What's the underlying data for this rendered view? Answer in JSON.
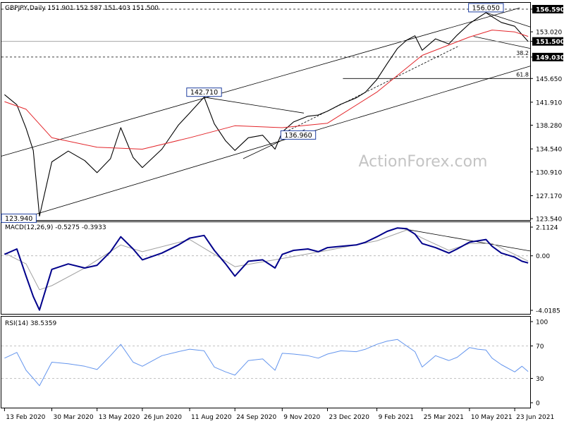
{
  "header": {
    "symbol_line": "GBPJPY,Daily  151.901 152.587 151.403 151.500"
  },
  "watermark": "ActionForex.com",
  "colors": {
    "price": "#000000",
    "ma": "#e3262b",
    "macd": "#00008b",
    "signal": "#a0a0a0",
    "rsi": "#6495ed",
    "channel": "#000000",
    "guide": "#000000",
    "label_fill": "#ffffff",
    "label_border": "#1f3fa0",
    "highlight": "#000000"
  },
  "x_axis": {
    "labels": [
      "13 Feb 2020",
      "30 Mar 2020",
      "13 May 2020",
      "26 Jun 2020",
      "11 Aug 2020",
      "24 Sep 2020",
      "9 Nov 2020",
      "23 Dec 2020",
      "9 Feb 2021",
      "25 Mar 2021",
      "10 May 2021",
      "23 Jun 2021"
    ]
  },
  "chart_data": [
    {
      "type": "line",
      "title": "GBPJPY,Daily  151.901 152.587 151.403 151.500",
      "y_axis_labels": [
        "156.590",
        "153.020",
        "151.500",
        "149.030",
        "145.650",
        "141.910",
        "138.280",
        "134.540",
        "130.910",
        "127.170",
        "123.540"
      ],
      "ylim": [
        123.54,
        156.59
      ],
      "series": [
        {
          "name": "GBPJPY",
          "x": [
            "13 Feb 2020",
            "25 Feb 2020",
            "5 Mar 2020",
            "12 Mar 2020",
            "18 Mar 2020",
            "30 Mar 2020",
            "15 Apr 2020",
            "1 May 2020",
            "13 May 2020",
            "26 May 2020",
            "5 Jun 2020",
            "17 Jun 2020",
            "26 Jun 2020",
            "15 Jul 2020",
            "31 Jul 2020",
            "11 Aug 2020",
            "25 Aug 2020",
            "4 Sep 2020",
            "15 Sep 2020",
            "24 Sep 2020",
            "7 Oct 2020",
            "21 Oct 2020",
            "2 Nov 2020",
            "9 Nov 2020",
            "20 Nov 2020",
            "4 Dec 2020",
            "14 Dec 2020",
            "23 Dec 2020",
            "5 Jan 2021",
            "20 Jan 2021",
            "29 Jan 2021",
            "9 Feb 2021",
            "19 Feb 2021",
            "1 Mar 2021",
            "10 Mar 2021",
            "18 Mar 2021",
            "25 Mar 2021",
            "7 Apr 2021",
            "20 Apr 2021",
            "28 Apr 2021",
            "10 May 2021",
            "18 May 2021",
            "26 May 2021",
            "1 Jun 2021",
            "10 Jun 2021",
            "23 Jun 2021",
            "30 Jun 2021",
            "6 Jul 2021"
          ],
          "values": [
            143.1,
            141.5,
            137.8,
            134.3,
            123.94,
            132.5,
            134.2,
            132.7,
            130.8,
            133.0,
            137.9,
            133.2,
            131.6,
            134.5,
            138.3,
            140.2,
            142.71,
            138.5,
            135.8,
            134.3,
            136.3,
            136.7,
            134.5,
            137.2,
            138.8,
            139.7,
            139.9,
            140.5,
            141.6,
            142.6,
            143.5,
            145.5,
            148.0,
            150.4,
            151.7,
            152.4,
            150.1,
            151.9,
            151.1,
            152.5,
            154.3,
            155.2,
            156.05,
            155.4,
            154.5,
            153.9,
            152.6,
            151.5
          ]
        },
        {
          "name": "MA",
          "x": [
            "13 Feb 2020",
            "5 Mar 2020",
            "30 Mar 2020",
            "13 May 2020",
            "26 Jun 2020",
            "11 Aug 2020",
            "24 Sep 2020",
            "9 Nov 2020",
            "23 Dec 2020",
            "9 Feb 2021",
            "25 Mar 2021",
            "10 May 2021",
            "1 Jun 2021",
            "23 Jun 2021",
            "6 Jul 2021"
          ],
          "values": [
            142.0,
            140.8,
            136.3,
            134.8,
            134.5,
            136.3,
            138.2,
            137.9,
            138.6,
            143.5,
            149.3,
            152.2,
            153.3,
            153.0,
            152.3
          ]
        }
      ],
      "levels": [
        {
          "label": "156.590",
          "value": 156.59,
          "style": "dashed"
        },
        {
          "label": "151.500",
          "value": 151.5,
          "style": "solid"
        },
        {
          "label": "149.030",
          "value": 149.03,
          "style": "dashed"
        },
        {
          "label": "38.2",
          "value": 149.03,
          "style": "solid"
        },
        {
          "label": "61.8",
          "value": 145.65,
          "style": "solid"
        }
      ],
      "annotations": [
        {
          "text": "156.050",
          "at": "26 May 2021",
          "value": 156.05
        },
        {
          "text": "142.710",
          "at": "25 Aug 2020",
          "value": 142.71
        },
        {
          "text": "136.960",
          "at": "9 Nov 2020",
          "value": 136.96
        },
        {
          "text": "123.940",
          "at": "18 Mar 2020",
          "value": 123.94
        }
      ]
    },
    {
      "type": "line",
      "title": "MACD(12,26,9) -0.5275 -0.3933",
      "y_axis_labels": [
        "2.1124",
        "0.00",
        "-4.0185"
      ],
      "ylim": [
        -4.0185,
        2.1124
      ],
      "series": [
        {
          "name": "MACD",
          "x": [
            "13 Feb 2020",
            "25 Feb 2020",
            "5 Mar 2020",
            "12 Mar 2020",
            "18 Mar 2020",
            "30 Mar 2020",
            "15 Apr 2020",
            "1 May 2020",
            "13 May 2020",
            "26 May 2020",
            "5 Jun 2020",
            "17 Jun 2020",
            "26 Jun 2020",
            "15 Jul 2020",
            "31 Jul 2020",
            "11 Aug 2020",
            "25 Aug 2020",
            "4 Sep 2020",
            "15 Sep 2020",
            "24 Sep 2020",
            "7 Oct 2020",
            "21 Oct 2020",
            "2 Nov 2020",
            "9 Nov 2020",
            "20 Nov 2020",
            "4 Dec 2020",
            "14 Dec 2020",
            "23 Dec 2020",
            "5 Jan 2021",
            "20 Jan 2021",
            "29 Jan 2021",
            "9 Feb 2021",
            "19 Feb 2021",
            "1 Mar 2021",
            "10 Mar 2021",
            "18 Mar 2021",
            "25 Mar 2021",
            "7 Apr 2021",
            "20 Apr 2021",
            "28 Apr 2021",
            "10 May 2021",
            "18 May 2021",
            "26 May 2021",
            "1 Jun 2021",
            "10 Jun 2021",
            "23 Jun 2021",
            "30 Jun 2021",
            "6 Jul 2021"
          ],
          "values": [
            0.1,
            0.5,
            -1.5,
            -3.0,
            -4.0,
            -1.0,
            -0.6,
            -0.9,
            -0.7,
            0.3,
            1.4,
            0.5,
            -0.3,
            0.2,
            0.8,
            1.3,
            1.5,
            0.4,
            -0.6,
            -1.5,
            -0.4,
            -0.3,
            -0.9,
            0.1,
            0.4,
            0.5,
            0.3,
            0.6,
            0.7,
            0.8,
            1.0,
            1.4,
            1.8,
            2.05,
            2.0,
            1.6,
            0.9,
            0.6,
            0.2,
            0.5,
            1.0,
            1.1,
            1.2,
            0.7,
            0.2,
            -0.1,
            -0.4,
            -0.5275
          ]
        },
        {
          "name": "Signal",
          "x": [
            "13 Feb 2020",
            "5 Mar 2020",
            "18 Mar 2020",
            "30 Mar 2020",
            "1 May 2020",
            "5 Jun 2020",
            "26 Jun 2020",
            "11 Aug 2020",
            "24 Sep 2020",
            "9 Nov 2020",
            "23 Dec 2020",
            "9 Feb 2021",
            "10 Mar 2021",
            "25 Mar 2021",
            "20 Apr 2021",
            "10 May 2021",
            "1 Jun 2021",
            "23 Jun 2021",
            "6 Jul 2021"
          ],
          "values": [
            0.2,
            -0.6,
            -2.5,
            -2.2,
            -0.9,
            0.8,
            0.3,
            1.2,
            -0.8,
            -0.2,
            0.4,
            1.1,
            1.9,
            1.3,
            0.4,
            0.9,
            0.9,
            0.1,
            -0.3933
          ]
        }
      ]
    },
    {
      "type": "line",
      "title": "RSI(14) 38.5359",
      "y_axis_labels": [
        "100",
        "70",
        "30",
        "0"
      ],
      "ylim": [
        0,
        100
      ],
      "series": [
        {
          "name": "RSI",
          "x": [
            "13 Feb 2020",
            "25 Feb 2020",
            "5 Mar 2020",
            "12 Mar 2020",
            "18 Mar 2020",
            "30 Mar 2020",
            "15 Apr 2020",
            "1 May 2020",
            "13 May 2020",
            "26 May 2020",
            "5 Jun 2020",
            "17 Jun 2020",
            "26 Jun 2020",
            "15 Jul 2020",
            "31 Jul 2020",
            "11 Aug 2020",
            "25 Aug 2020",
            "4 Sep 2020",
            "15 Sep 2020",
            "24 Sep 2020",
            "7 Oct 2020",
            "21 Oct 2020",
            "2 Nov 2020",
            "9 Nov 2020",
            "20 Nov 2020",
            "4 Dec 2020",
            "14 Dec 2020",
            "23 Dec 2020",
            "5 Jan 2021",
            "20 Jan 2021",
            "29 Jan 2021",
            "9 Feb 2021",
            "19 Feb 2021",
            "1 Mar 2021",
            "10 Mar 2021",
            "18 Mar 2021",
            "25 Mar 2021",
            "7 Apr 2021",
            "20 Apr 2021",
            "28 Apr 2021",
            "10 May 2021",
            "18 May 2021",
            "26 May 2021",
            "1 Jun 2021",
            "10 Jun 2021",
            "23 Jun 2021",
            "30 Jun 2021",
            "6 Jul 2021"
          ],
          "values": [
            55,
            62,
            40,
            30,
            21,
            50,
            48,
            45,
            41,
            58,
            72,
            50,
            45,
            58,
            63,
            66,
            64,
            44,
            38,
            34,
            52,
            54,
            40,
            61,
            60,
            58,
            55,
            60,
            64,
            63,
            66,
            72,
            76,
            78,
            70,
            63,
            44,
            58,
            52,
            56,
            68,
            66,
            65,
            55,
            47,
            38,
            45,
            38.5359
          ]
        }
      ],
      "levels": [
        {
          "label": "70",
          "value": 70,
          "style": "dashed"
        },
        {
          "label": "30",
          "value": 30,
          "style": "dashed"
        }
      ]
    }
  ]
}
